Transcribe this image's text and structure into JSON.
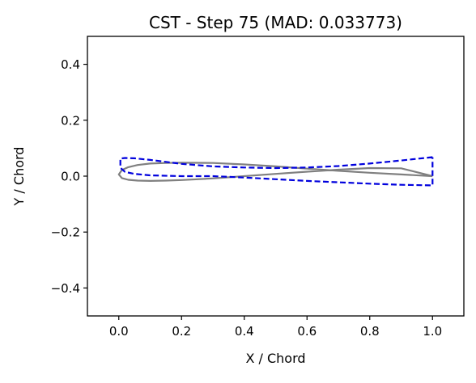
{
  "chart_data": {
    "type": "line",
    "title": "CST - Step 75 (MAD: 0.033773)",
    "xlabel": "X / Chord",
    "ylabel": "Y / Chord",
    "xlim": [
      -0.1,
      1.1
    ],
    "ylim": [
      -0.5,
      0.5
    ],
    "xticks": [
      0.0,
      0.2,
      0.4,
      0.6,
      0.8,
      1.0
    ],
    "xtick_labels": [
      "0.0",
      "0.2",
      "0.4",
      "0.6",
      "0.8",
      "1.0"
    ],
    "yticks": [
      -0.4,
      -0.2,
      0.0,
      0.2,
      0.4
    ],
    "ytick_labels": [
      "−0.4",
      "−0.2",
      "0.0",
      "0.2",
      "0.4"
    ],
    "grid": false,
    "series": [
      {
        "style": "solid",
        "color": "#808080",
        "x": [
          1.0,
          0.9,
          0.8,
          0.7,
          0.6,
          0.5,
          0.4,
          0.3,
          0.2,
          0.15,
          0.1,
          0.06,
          0.03,
          0.01,
          0.0,
          0.01,
          0.03,
          0.06,
          0.1,
          0.15,
          0.2,
          0.3,
          0.4,
          0.5,
          0.6,
          0.7,
          0.8,
          0.9,
          1.0
        ],
        "y": [
          0.0,
          0.006,
          0.012,
          0.019,
          0.027,
          0.035,
          0.042,
          0.047,
          0.048,
          0.047,
          0.045,
          0.04,
          0.032,
          0.022,
          0.006,
          -0.007,
          -0.013,
          -0.016,
          -0.017,
          -0.016,
          -0.014,
          -0.008,
          0.0,
          0.008,
          0.016,
          0.023,
          0.029,
          0.028,
          0.0
        ]
      },
      {
        "style": "dashed",
        "color": "#0000dd",
        "x": [
          1.0,
          0.9,
          0.8,
          0.7,
          0.6,
          0.5,
          0.4,
          0.3,
          0.2,
          0.1,
          0.05,
          0.02,
          0.005,
          0.005,
          0.02,
          0.05,
          0.1,
          0.2,
          0.3,
          0.4,
          0.5,
          0.6,
          0.7,
          0.8,
          0.9,
          1.0,
          1.0
        ],
        "y": [
          0.068,
          0.056,
          0.045,
          0.036,
          0.031,
          0.029,
          0.031,
          0.035,
          0.044,
          0.058,
          0.064,
          0.065,
          0.063,
          0.03,
          0.015,
          0.008,
          0.003,
          0.0,
          0.0,
          -0.005,
          -0.011,
          -0.017,
          -0.022,
          -0.027,
          -0.031,
          -0.033,
          0.068
        ]
      }
    ]
  }
}
